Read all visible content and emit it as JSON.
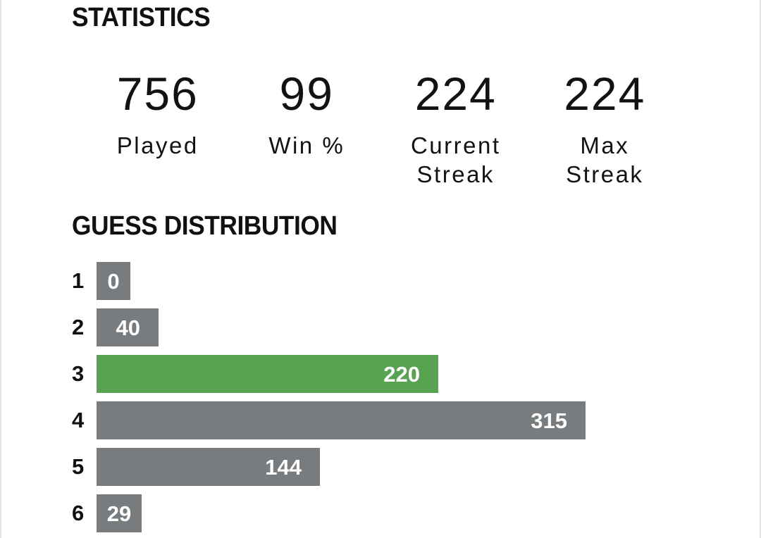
{
  "colors": {
    "bar_default": "#787c7e",
    "bar_highlight": "#58a351",
    "text": "#121212",
    "bar_text": "#ffffff"
  },
  "statistics": {
    "heading": "STATISTICS",
    "items": [
      {
        "value": "756",
        "label": "Played"
      },
      {
        "value": "99",
        "label": "Win %"
      },
      {
        "value": "224",
        "label": "Current\nStreak"
      },
      {
        "value": "224",
        "label": "Max\nStreak"
      }
    ]
  },
  "guess_distribution": {
    "heading": "GUESS DISTRIBUTION",
    "max_count": 315,
    "highlighted_guess": "3",
    "rows": [
      {
        "guess": "1",
        "count": "0"
      },
      {
        "guess": "2",
        "count": "40"
      },
      {
        "guess": "3",
        "count": "220"
      },
      {
        "guess": "4",
        "count": "315"
      },
      {
        "guess": "5",
        "count": "144"
      },
      {
        "guess": "6",
        "count": "29"
      }
    ]
  }
}
